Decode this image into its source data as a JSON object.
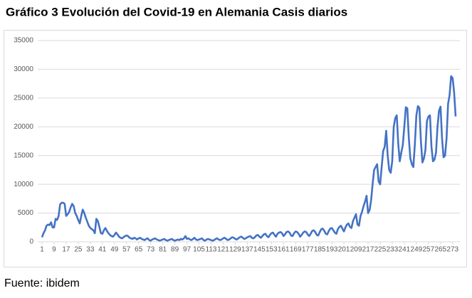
{
  "chart_data": {
    "type": "line",
    "title": "Gráfico 3 Evolución del Covid-19 en Alemania Casis diarios",
    "source": "Fuente: ibidem",
    "color": "#4472c4",
    "grid": true,
    "ylim": [
      0,
      35000
    ],
    "yticks": [
      0,
      5000,
      10000,
      15000,
      20000,
      25000,
      30000,
      35000
    ],
    "xlim": [
      1,
      275
    ],
    "xticks": [
      1,
      9,
      17,
      25,
      33,
      41,
      49,
      57,
      65,
      73,
      81,
      89,
      97,
      105,
      113,
      121,
      129,
      137,
      145,
      153,
      161,
      169,
      177,
      185,
      193,
      201,
      209,
      217,
      225,
      233,
      241,
      249,
      257,
      265,
      273
    ],
    "x": [
      1,
      2,
      3,
      4,
      5,
      6,
      7,
      8,
      9,
      10,
      11,
      12,
      13,
      14,
      15,
      16,
      17,
      18,
      19,
      20,
      21,
      22,
      23,
      24,
      25,
      26,
      27,
      28,
      29,
      30,
      31,
      32,
      33,
      34,
      35,
      36,
      37,
      38,
      39,
      40,
      41,
      42,
      43,
      44,
      45,
      46,
      47,
      48,
      49,
      50,
      51,
      52,
      53,
      54,
      55,
      56,
      57,
      58,
      59,
      60,
      61,
      62,
      63,
      64,
      65,
      66,
      67,
      68,
      69,
      70,
      71,
      72,
      73,
      74,
      75,
      76,
      77,
      78,
      79,
      80,
      81,
      82,
      83,
      84,
      85,
      86,
      87,
      88,
      89,
      90,
      91,
      92,
      93,
      94,
      95,
      96,
      97,
      98,
      99,
      100,
      101,
      102,
      103,
      104,
      105,
      106,
      107,
      108,
      109,
      110,
      111,
      112,
      113,
      114,
      115,
      116,
      117,
      118,
      119,
      120,
      121,
      122,
      123,
      124,
      125,
      126,
      127,
      128,
      129,
      130,
      131,
      132,
      133,
      134,
      135,
      136,
      137,
      138,
      139,
      140,
      141,
      142,
      143,
      144,
      145,
      146,
      147,
      148,
      149,
      150,
      151,
      152,
      153,
      154,
      155,
      156,
      157,
      158,
      159,
      160,
      161,
      162,
      163,
      164,
      165,
      166,
      167,
      168,
      169,
      170,
      171,
      172,
      173,
      174,
      175,
      176,
      177,
      178,
      179,
      180,
      181,
      182,
      183,
      184,
      185,
      186,
      187,
      188,
      189,
      190,
      191,
      192,
      193,
      194,
      195,
      196,
      197,
      198,
      199,
      200,
      201,
      202,
      203,
      204,
      205,
      206,
      207,
      208,
      209,
      210,
      211,
      212,
      213,
      214,
      215,
      216,
      217,
      218,
      219,
      220,
      221,
      222,
      223,
      224,
      225,
      226,
      227,
      228,
      229,
      230,
      231,
      232,
      233,
      234,
      235,
      236,
      237,
      238,
      239,
      240,
      241,
      242,
      243,
      244,
      245,
      246,
      247,
      248,
      249,
      250,
      251,
      252,
      253,
      254,
      255,
      256,
      257,
      258,
      259,
      260,
      261,
      262,
      263,
      264,
      265,
      266,
      267,
      268,
      269,
      270,
      271,
      272,
      273,
      274,
      275
    ],
    "values": [
      800,
      1500,
      2000,
      2800,
      3000,
      2900,
      3400,
      2500,
      2500,
      4000,
      3800,
      4500,
      6500,
      6800,
      6800,
      6600,
      4500,
      4800,
      5200,
      6000,
      6600,
      6200,
      5000,
      4500,
      3800,
      3200,
      4500,
      5600,
      5000,
      4200,
      3500,
      2800,
      2400,
      2200,
      2000,
      1500,
      4000,
      3600,
      2600,
      1500,
      1400,
      2000,
      2400,
      1900,
      1500,
      1200,
      1000,
      900,
      1200,
      1600,
      1300,
      900,
      700,
      600,
      800,
      1000,
      1100,
      1000,
      700,
      600,
      500,
      700,
      600,
      400,
      600,
      700,
      500,
      400,
      300,
      500,
      600,
      300,
      200,
      400,
      500,
      600,
      400,
      300,
      200,
      300,
      400,
      500,
      300,
      200,
      300,
      400,
      500,
      300,
      200,
      300,
      400,
      300,
      500,
      400,
      600,
      1000,
      500,
      600,
      400,
      300,
      500,
      700,
      400,
      300,
      400,
      500,
      600,
      300,
      200,
      400,
      500,
      400,
      300,
      200,
      300,
      500,
      600,
      400,
      300,
      400,
      600,
      700,
      500,
      300,
      400,
      600,
      800,
      700,
      500,
      400,
      600,
      800,
      900,
      700,
      500,
      600,
      800,
      900,
      1000,
      700,
      600,
      800,
      1100,
      1200,
      900,
      700,
      1000,
      1300,
      1400,
      1000,
      800,
      1200,
      1500,
      1600,
      1200,
      900,
      1400,
      1600,
      1700,
      1500,
      1000,
      1300,
      1700,
      1800,
      1600,
      1100,
      1000,
      1500,
      1800,
      1700,
      1400,
      900,
      1200,
      1600,
      1800,
      1700,
      1300,
      1000,
      1400,
      1900,
      2000,
      1700,
      1200,
      1100,
      1700,
      2200,
      2300,
      1900,
      1400,
      1300,
      1900,
      2300,
      2400,
      2000,
      1600,
      1400,
      2200,
      2600,
      2800,
      2300,
      1800,
      2500,
      3000,
      3200,
      2600,
      2400,
      3600,
      4200,
      4800,
      3000,
      2800,
      4500,
      5200,
      6200,
      7000,
      8000,
      5000,
      5500,
      7200,
      10000,
      12500,
      13000,
      13500,
      10500,
      10000,
      13000,
      15800,
      16500,
      19300,
      15000,
      12500,
      12000,
      14000,
      20000,
      21500,
      22000,
      17000,
      14000,
      15500,
      16800,
      20000,
      23400,
      23200,
      18000,
      14500,
      13500,
      13000,
      17000,
      22000,
      23600,
      23300,
      17500,
      13800,
      14500,
      16000,
      21000,
      21800,
      22000,
      16500,
      14000,
      14300,
      15500,
      20000,
      22800,
      23500,
      18000,
      14700,
      15000,
      18000,
      24000,
      25500,
      28800,
      28500,
      26000,
      21800
    ]
  }
}
